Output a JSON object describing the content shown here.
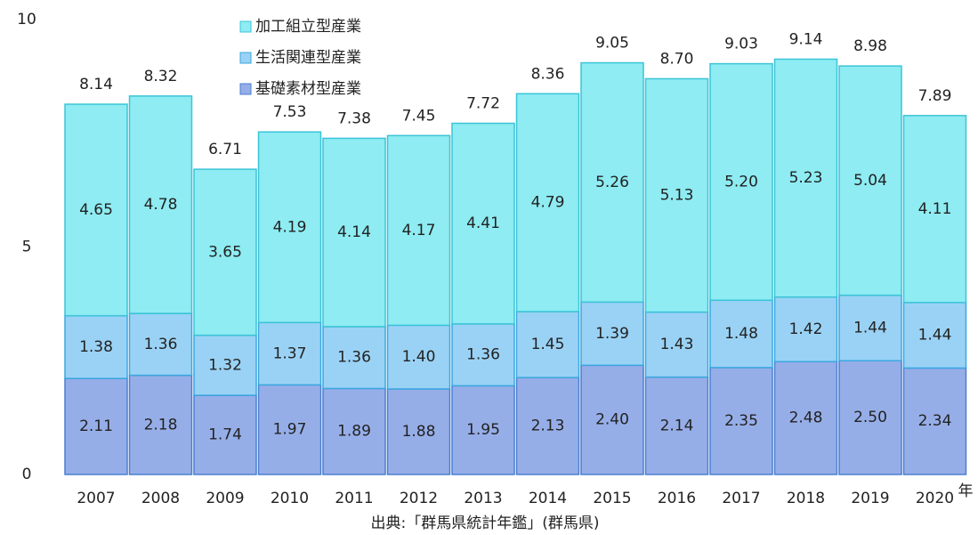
{
  "chart_data": {
    "type": "stacked_bar",
    "categories": [
      "2007",
      "2008",
      "2009",
      "2010",
      "2011",
      "2012",
      "2013",
      "2014",
      "2015",
      "2016",
      "2017",
      "2018",
      "2019",
      "2020"
    ],
    "series": [
      {
        "name": "基礎素材型産業",
        "color": "#96aee8",
        "stroke": "#4a7fd0",
        "values": [
          2.11,
          2.18,
          1.74,
          1.97,
          1.89,
          1.88,
          1.95,
          2.13,
          2.4,
          2.14,
          2.35,
          2.48,
          2.5,
          2.34
        ],
        "value_labels": [
          "2.11",
          "2.18",
          "1.74",
          "1.97",
          "1.89",
          "1.88",
          "1.95",
          "2.13",
          "2.40",
          "2.14",
          "2.35",
          "2.48",
          "2.50",
          "2.34"
        ]
      },
      {
        "name": "生活関連型産業",
        "color": "#9ad2f5",
        "stroke": "#3ba7e0",
        "values": [
          1.38,
          1.36,
          1.32,
          1.37,
          1.36,
          1.4,
          1.36,
          1.45,
          1.39,
          1.43,
          1.48,
          1.42,
          1.44,
          1.44
        ],
        "value_labels": [
          "1.38",
          "1.36",
          "1.32",
          "1.37",
          "1.36",
          "1.40",
          "1.36",
          "1.45",
          "1.39",
          "1.43",
          "1.48",
          "1.42",
          "1.44",
          "1.44"
        ]
      },
      {
        "name": "加工組立型産業",
        "color": "#8eecf2",
        "stroke": "#3cc4d8",
        "values": [
          4.65,
          4.78,
          3.65,
          4.19,
          4.14,
          4.17,
          4.41,
          4.79,
          5.26,
          5.13,
          5.2,
          5.23,
          5.04,
          4.11
        ],
        "value_labels": [
          "4.65",
          "4.78",
          "3.65",
          "4.19",
          "4.14",
          "4.17",
          "4.41",
          "4.79",
          "5.26",
          "5.13",
          "5.20",
          "5.23",
          "5.04",
          "4.11"
        ]
      }
    ],
    "totals": [
      "8.14",
      "8.32",
      "6.71",
      "7.53",
      "7.38",
      "7.45",
      "7.72",
      "8.36",
      "9.05",
      "8.70",
      "9.03",
      "9.14",
      "8.98",
      "7.89"
    ],
    "ylim": [
      0,
      10
    ],
    "yticks": [
      0,
      5,
      10
    ],
    "xlabel": "年",
    "source": "出典:「群馬県統計年鑑」(群馬県)"
  }
}
